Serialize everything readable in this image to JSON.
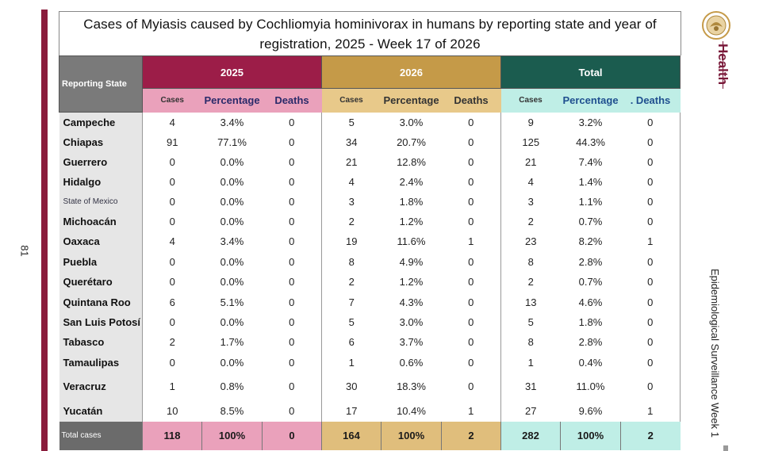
{
  "page_number": "81",
  "title": "Cases of Myiasis caused by Cochliomyia hominivorax in humans by reporting state and year of registration, 2025 - Week 17 of 2026",
  "brand": "Health",
  "side_label": "Epidemiological Surveillance Week 1",
  "colors": {
    "accent_2025": "#9c1d48",
    "accent_2026": "#c59a48",
    "accent_total": "#1b5c4f",
    "brand": "#7a1a3a"
  },
  "table": {
    "state_header": "Reporting State",
    "groups": [
      "2025",
      "2026",
      "Total"
    ],
    "subheaders": {
      "g2025": [
        "Cases",
        "Percentage",
        "Deaths"
      ],
      "g2026": [
        "Cases",
        "Percentage",
        "Deaths"
      ],
      "gtotal": [
        "Cases",
        "Percentage",
        ". Deaths"
      ]
    },
    "rows": [
      {
        "state": "Campeche",
        "v": [
          "4",
          "3.4%",
          "0",
          "5",
          "3.0%",
          "0",
          "9",
          "3.2%",
          "0"
        ]
      },
      {
        "state": "Chiapas",
        "v": [
          "91",
          "77.1%",
          "0",
          "34",
          "20.7%",
          "0",
          "125",
          "44.3%",
          "0"
        ]
      },
      {
        "state": "Guerrero",
        "v": [
          "0",
          "0.0%",
          "0",
          "21",
          "12.8%",
          "0",
          "21",
          "7.4%",
          "0"
        ]
      },
      {
        "state": "Hidalgo",
        "v": [
          "0",
          "0.0%",
          "0",
          "4",
          "2.4%",
          "0",
          "4",
          "1.4%",
          "0"
        ]
      },
      {
        "state": "State of Mexico",
        "v": [
          "0",
          "0.0%",
          "0",
          "3",
          "1.8%",
          "0",
          "3",
          "1.1%",
          "0"
        ]
      },
      {
        "state": "Michoacán",
        "v": [
          "0",
          "0.0%",
          "0",
          "2",
          "1.2%",
          "0",
          "2",
          "0.7%",
          "0"
        ]
      },
      {
        "state": "Oaxaca",
        "v": [
          "4",
          "3.4%",
          "0",
          "19",
          "11.6%",
          "1",
          "23",
          "8.2%",
          "1"
        ]
      },
      {
        "state": "Puebla",
        "v": [
          "0",
          "0.0%",
          "0",
          "8",
          "4.9%",
          "0",
          "8",
          "2.8%",
          "0"
        ]
      },
      {
        "state": "Querétaro",
        "v": [
          "0",
          "0.0%",
          "0",
          "2",
          "1.2%",
          "0",
          "2",
          "0.7%",
          "0"
        ]
      },
      {
        "state": "Quintana Roo",
        "v": [
          "6",
          "5.1%",
          "0",
          "7",
          "4.3%",
          "0",
          "13",
          "4.6%",
          "0"
        ]
      },
      {
        "state": "San Luis Potosí",
        "v": [
          "0",
          "0.0%",
          "0",
          "5",
          "3.0%",
          "0",
          "5",
          "1.8%",
          "0"
        ]
      },
      {
        "state": "Tabasco",
        "v": [
          "2",
          "1.7%",
          "0",
          "6",
          "3.7%",
          "0",
          "8",
          "2.8%",
          "0"
        ]
      },
      {
        "state": "Tamaulipas",
        "v": [
          "0",
          "0.0%",
          "0",
          "1",
          "0.6%",
          "0",
          "1",
          "0.4%",
          "0"
        ]
      },
      {
        "state": "Veracruz",
        "v": [
          "1",
          "0.8%",
          "0",
          "30",
          "18.3%",
          "0",
          "31",
          "11.0%",
          "0"
        ]
      },
      {
        "state": "Yucatán",
        "v": [
          "10",
          "8.5%",
          "0",
          "17",
          "10.4%",
          "1",
          "27",
          "9.6%",
          "1"
        ]
      }
    ],
    "total": {
      "label": "Total cases",
      "v": [
        "118",
        "100%",
        "0",
        "164",
        "100%",
        "2",
        "282",
        "100%",
        "2"
      ]
    }
  }
}
